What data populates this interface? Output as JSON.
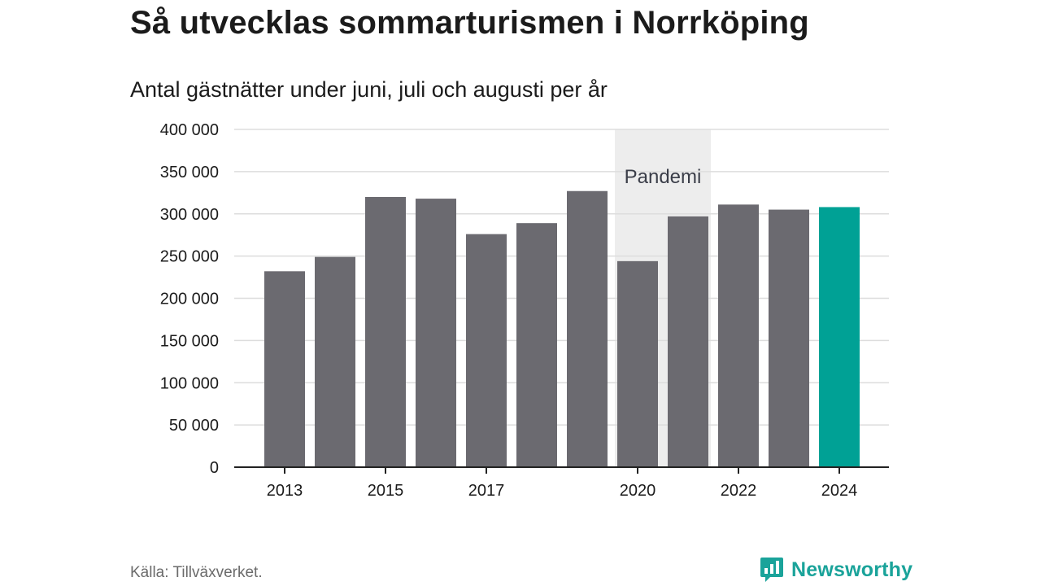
{
  "title": "Så utvecklas sommarturismen i Norrköping",
  "subtitle": "Antal gästnätter under juni, juli och augusti per år",
  "source": "Källa: Tillväxverket.",
  "brand": "Newsworthy",
  "colors": {
    "bar": "#6b6a70",
    "highlight": "#00a195",
    "band": "#ededed",
    "grid": "#dddddd",
    "axis": "#222222",
    "text": "#1b1b1b",
    "brand": "#1aa39a"
  },
  "chart_data": {
    "type": "bar",
    "categories": [
      "2013",
      "2014",
      "2015",
      "2016",
      "2017",
      "2018",
      "2019",
      "2020",
      "2021",
      "2022",
      "2023",
      "2024"
    ],
    "values": [
      232000,
      249000,
      320000,
      318000,
      276000,
      289000,
      327000,
      244000,
      297000,
      311000,
      305000,
      308000
    ],
    "x_tick_labels": [
      "2013",
      "2015",
      "2017",
      "2020",
      "2022",
      "2024"
    ],
    "y_ticks": [
      0,
      50000,
      100000,
      150000,
      200000,
      250000,
      300000,
      350000,
      400000
    ],
    "y_tick_labels": [
      "0",
      "50 000",
      "100 000",
      "150 000",
      "200 000",
      "250 000",
      "300 000",
      "350 000",
      "400 000"
    ],
    "ylim": [
      0,
      400000
    ],
    "highlight_category": "2024",
    "annotation": {
      "label": "Pandemi",
      "from": "2020",
      "to": "2021"
    },
    "grid": true,
    "xlabel": "",
    "ylabel": ""
  }
}
